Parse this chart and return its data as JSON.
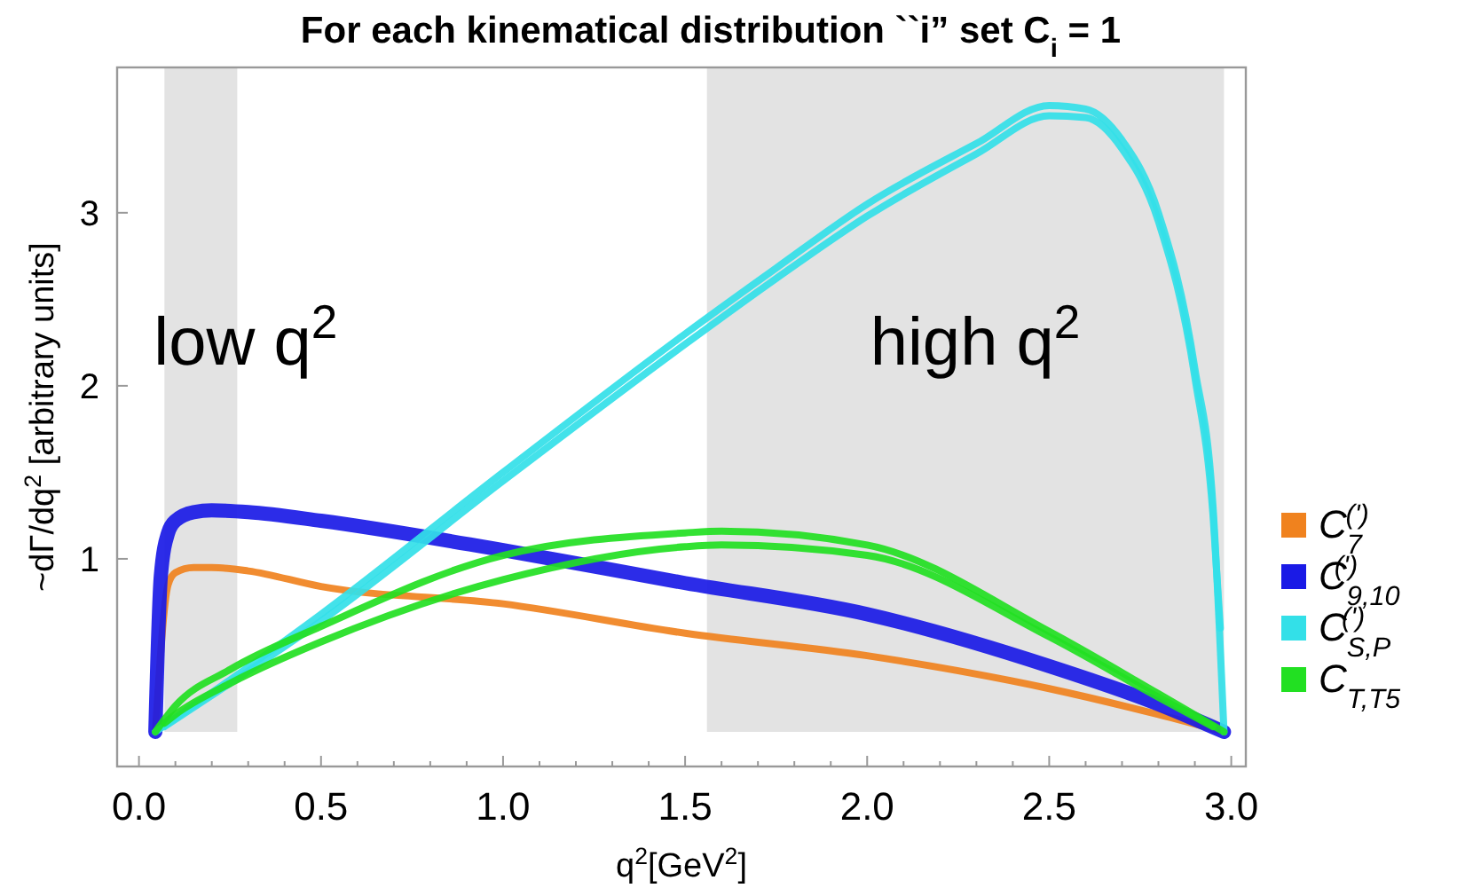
{
  "chart_data": {
    "type": "line",
    "title": "For each kinematical distribution ``i” set C$_{i}$ = 1",
    "xlabel": "q$^{2}$[GeV$^{2}$]",
    "ylabel": "~dΓ/dq$^{2}$ [arbitrary units]",
    "xlim": [
      -0.06,
      3.04
    ],
    "ylim": [
      -0.2,
      3.84
    ],
    "xticks": [
      {
        "value": 0,
        "label": "0.0"
      },
      {
        "value": 0.1,
        "label": null
      },
      {
        "value": 0.2,
        "label": null
      },
      {
        "value": 0.3,
        "label": null
      },
      {
        "value": 0.4,
        "label": null
      },
      {
        "value": 0.5,
        "label": "0.5"
      },
      {
        "value": 0.6,
        "label": null
      },
      {
        "value": 0.7,
        "label": null
      },
      {
        "value": 0.8,
        "label": null
      },
      {
        "value": 0.9,
        "label": null
      },
      {
        "value": 1,
        "label": "1.0"
      },
      {
        "value": 1.1,
        "label": null
      },
      {
        "value": 1.2,
        "label": null
      },
      {
        "value": 1.3,
        "label": null
      },
      {
        "value": 1.4,
        "label": null
      },
      {
        "value": 1.5,
        "label": "1.5"
      },
      {
        "value": 1.6,
        "label": null
      },
      {
        "value": 1.7,
        "label": null
      },
      {
        "value": 1.8,
        "label": null
      },
      {
        "value": 1.9,
        "label": null
      },
      {
        "value": 2,
        "label": "2.0"
      },
      {
        "value": 2.1,
        "label": null
      },
      {
        "value": 2.2,
        "label": null
      },
      {
        "value": 2.3,
        "label": null
      },
      {
        "value": 2.4,
        "label": null
      },
      {
        "value": 2.5,
        "label": "2.5"
      },
      {
        "value": 2.6,
        "label": null
      },
      {
        "value": 2.7,
        "label": null
      },
      {
        "value": 2.8,
        "label": null
      },
      {
        "value": 2.9,
        "label": null
      },
      {
        "value": 3,
        "label": "3.0"
      }
    ],
    "yticks": [
      1,
      2,
      3
    ],
    "bands": [
      {
        "axis": "x",
        "from": 0.07,
        "to": 0.27,
        "label": "low q$^{2}$",
        "color": "#e3e3e3"
      },
      {
        "axis": "x",
        "from": 1.56,
        "to": 2.98,
        "label": "high q$^{2}$",
        "color": "#e3e3e3"
      }
    ],
    "legend": "right",
    "grid": false,
    "series": [
      {
        "name": "C$_{7}$$^{(')}$",
        "color": "#f0821e",
        "x": [
          0.045,
          0.06,
          0.08,
          0.1,
          0.15,
          0.2,
          0.3,
          0.5,
          1.0,
          1.5,
          2.0,
          2.5,
          2.8,
          2.98
        ],
        "values": [
          0,
          null,
          0.85,
          0.92,
          0.95,
          0.95,
          0.93,
          0.84,
          0.74,
          0.57,
          0.44,
          0.25,
          0.1,
          0
        ]
      },
      {
        "name": "C$_{9,10}$$^{(')}$",
        "color": "#1a1ae6",
        "x": [
          0.045,
          0.06,
          0.08,
          0.1,
          0.15,
          0.2,
          0.3,
          0.5,
          1.0,
          1.5,
          2.0,
          2.5,
          2.8,
          2.98
        ],
        "values": [
          0,
          0.9,
          1.15,
          1.22,
          1.27,
          1.28,
          1.27,
          1.22,
          1.05,
          0.86,
          0.68,
          0.38,
          0.16,
          0
        ]
      },
      {
        "name": "C$_{S,P}$$^{(')}$",
        "color": "#33e0e8",
        "x": [
          0.045,
          0.25,
          0.5,
          1.0,
          1.5,
          1.75,
          2.0,
          2.3,
          2.5,
          2.6,
          2.7,
          2.8,
          2.9,
          2.95,
          2.98
        ],
        "values": [
          0,
          0.3,
          0.68,
          1.5,
          2.3,
          2.68,
          3.05,
          3.4,
          3.62,
          3.6,
          3.42,
          3.0,
          2.1,
          1.3,
          0
        ]
      },
      {
        "color": "#33e0e8",
        "x": [
          0.07,
          0.25,
          0.5,
          1.0,
          1.5,
          1.75,
          2.0,
          2.3,
          2.5,
          2.6,
          2.7,
          2.8,
          2.9,
          2.95,
          2.97
        ],
        "values": [
          0.03,
          0.28,
          0.64,
          1.45,
          2.24,
          2.62,
          2.98,
          3.34,
          3.56,
          3.55,
          3.37,
          2.95,
          2.05,
          1.25,
          0.6
        ]
      },
      {
        "name": "C$_{T,T5}$",
        "color": "#22e022",
        "x": [
          0.045,
          0.1,
          0.25,
          0.5,
          1.0,
          1.5,
          1.6,
          2.0,
          2.5,
          2.8,
          2.98
        ],
        "values": [
          0,
          0.15,
          0.36,
          0.61,
          1.02,
          1.15,
          1.16,
          1.08,
          0.58,
          0.22,
          0
        ]
      },
      {
        "color": "#22e022",
        "x": [
          0.07,
          0.1,
          0.25,
          0.5,
          1.0,
          1.5,
          1.6,
          2.0,
          2.5,
          2.8,
          2.95
        ],
        "values": [
          0.05,
          0.1,
          0.28,
          0.52,
          0.88,
          1.07,
          1.08,
          1.02,
          0.55,
          0.2,
          0.03
        ]
      }
    ]
  }
}
